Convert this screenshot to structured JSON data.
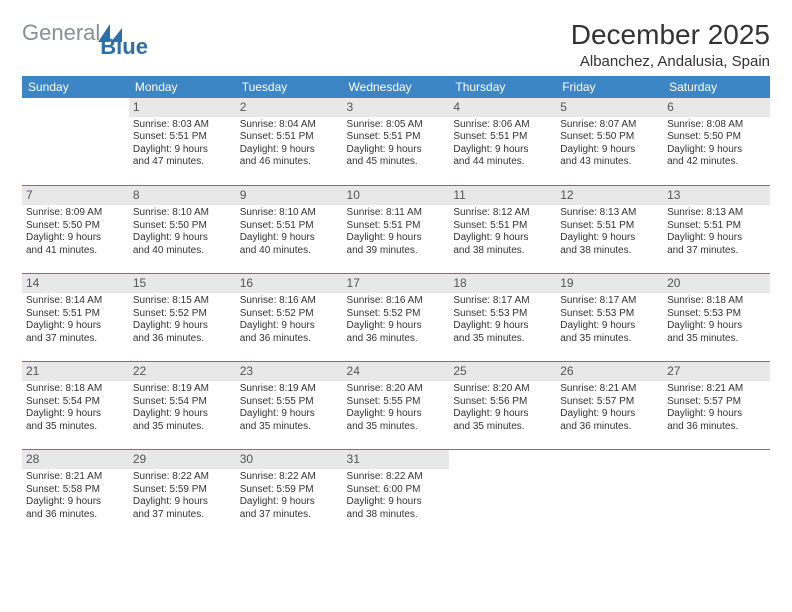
{
  "logo": {
    "word1": "General",
    "word2": "Blue"
  },
  "title": "December 2025",
  "location": "Albanchez, Andalusia, Spain",
  "weekdays": [
    "Sunday",
    "Monday",
    "Tuesday",
    "Wednesday",
    "Thursday",
    "Friday",
    "Saturday"
  ],
  "colors": {
    "header_blue": "#3d86c6",
    "gray_day_bg": "#e8e8e8",
    "logo_gray": "#8a8f93",
    "logo_blue": "#2f6fa8"
  },
  "weeks": [
    [
      {
        "day": "",
        "sunrise": "",
        "sunset": "",
        "daylight1": "",
        "daylight2": "",
        "empty": true
      },
      {
        "day": "1",
        "sunrise": "Sunrise: 8:03 AM",
        "sunset": "Sunset: 5:51 PM",
        "daylight1": "Daylight: 9 hours",
        "daylight2": "and 47 minutes."
      },
      {
        "day": "2",
        "sunrise": "Sunrise: 8:04 AM",
        "sunset": "Sunset: 5:51 PM",
        "daylight1": "Daylight: 9 hours",
        "daylight2": "and 46 minutes."
      },
      {
        "day": "3",
        "sunrise": "Sunrise: 8:05 AM",
        "sunset": "Sunset: 5:51 PM",
        "daylight1": "Daylight: 9 hours",
        "daylight2": "and 45 minutes."
      },
      {
        "day": "4",
        "sunrise": "Sunrise: 8:06 AM",
        "sunset": "Sunset: 5:51 PM",
        "daylight1": "Daylight: 9 hours",
        "daylight2": "and 44 minutes."
      },
      {
        "day": "5",
        "sunrise": "Sunrise: 8:07 AM",
        "sunset": "Sunset: 5:50 PM",
        "daylight1": "Daylight: 9 hours",
        "daylight2": "and 43 minutes."
      },
      {
        "day": "6",
        "sunrise": "Sunrise: 8:08 AM",
        "sunset": "Sunset: 5:50 PM",
        "daylight1": "Daylight: 9 hours",
        "daylight2": "and 42 minutes."
      }
    ],
    [
      {
        "day": "7",
        "sunrise": "Sunrise: 8:09 AM",
        "sunset": "Sunset: 5:50 PM",
        "daylight1": "Daylight: 9 hours",
        "daylight2": "and 41 minutes."
      },
      {
        "day": "8",
        "sunrise": "Sunrise: 8:10 AM",
        "sunset": "Sunset: 5:50 PM",
        "daylight1": "Daylight: 9 hours",
        "daylight2": "and 40 minutes."
      },
      {
        "day": "9",
        "sunrise": "Sunrise: 8:10 AM",
        "sunset": "Sunset: 5:51 PM",
        "daylight1": "Daylight: 9 hours",
        "daylight2": "and 40 minutes."
      },
      {
        "day": "10",
        "sunrise": "Sunrise: 8:11 AM",
        "sunset": "Sunset: 5:51 PM",
        "daylight1": "Daylight: 9 hours",
        "daylight2": "and 39 minutes."
      },
      {
        "day": "11",
        "sunrise": "Sunrise: 8:12 AM",
        "sunset": "Sunset: 5:51 PM",
        "daylight1": "Daylight: 9 hours",
        "daylight2": "and 38 minutes."
      },
      {
        "day": "12",
        "sunrise": "Sunrise: 8:13 AM",
        "sunset": "Sunset: 5:51 PM",
        "daylight1": "Daylight: 9 hours",
        "daylight2": "and 38 minutes."
      },
      {
        "day": "13",
        "sunrise": "Sunrise: 8:13 AM",
        "sunset": "Sunset: 5:51 PM",
        "daylight1": "Daylight: 9 hours",
        "daylight2": "and 37 minutes."
      }
    ],
    [
      {
        "day": "14",
        "sunrise": "Sunrise: 8:14 AM",
        "sunset": "Sunset: 5:51 PM",
        "daylight1": "Daylight: 9 hours",
        "daylight2": "and 37 minutes."
      },
      {
        "day": "15",
        "sunrise": "Sunrise: 8:15 AM",
        "sunset": "Sunset: 5:52 PM",
        "daylight1": "Daylight: 9 hours",
        "daylight2": "and 36 minutes."
      },
      {
        "day": "16",
        "sunrise": "Sunrise: 8:16 AM",
        "sunset": "Sunset: 5:52 PM",
        "daylight1": "Daylight: 9 hours",
        "daylight2": "and 36 minutes."
      },
      {
        "day": "17",
        "sunrise": "Sunrise: 8:16 AM",
        "sunset": "Sunset: 5:52 PM",
        "daylight1": "Daylight: 9 hours",
        "daylight2": "and 36 minutes."
      },
      {
        "day": "18",
        "sunrise": "Sunrise: 8:17 AM",
        "sunset": "Sunset: 5:53 PM",
        "daylight1": "Daylight: 9 hours",
        "daylight2": "and 35 minutes."
      },
      {
        "day": "19",
        "sunrise": "Sunrise: 8:17 AM",
        "sunset": "Sunset: 5:53 PM",
        "daylight1": "Daylight: 9 hours",
        "daylight2": "and 35 minutes."
      },
      {
        "day": "20",
        "sunrise": "Sunrise: 8:18 AM",
        "sunset": "Sunset: 5:53 PM",
        "daylight1": "Daylight: 9 hours",
        "daylight2": "and 35 minutes."
      }
    ],
    [
      {
        "day": "21",
        "sunrise": "Sunrise: 8:18 AM",
        "sunset": "Sunset: 5:54 PM",
        "daylight1": "Daylight: 9 hours",
        "daylight2": "and 35 minutes."
      },
      {
        "day": "22",
        "sunrise": "Sunrise: 8:19 AM",
        "sunset": "Sunset: 5:54 PM",
        "daylight1": "Daylight: 9 hours",
        "daylight2": "and 35 minutes."
      },
      {
        "day": "23",
        "sunrise": "Sunrise: 8:19 AM",
        "sunset": "Sunset: 5:55 PM",
        "daylight1": "Daylight: 9 hours",
        "daylight2": "and 35 minutes."
      },
      {
        "day": "24",
        "sunrise": "Sunrise: 8:20 AM",
        "sunset": "Sunset: 5:55 PM",
        "daylight1": "Daylight: 9 hours",
        "daylight2": "and 35 minutes."
      },
      {
        "day": "25",
        "sunrise": "Sunrise: 8:20 AM",
        "sunset": "Sunset: 5:56 PM",
        "daylight1": "Daylight: 9 hours",
        "daylight2": "and 35 minutes."
      },
      {
        "day": "26",
        "sunrise": "Sunrise: 8:21 AM",
        "sunset": "Sunset: 5:57 PM",
        "daylight1": "Daylight: 9 hours",
        "daylight2": "and 36 minutes."
      },
      {
        "day": "27",
        "sunrise": "Sunrise: 8:21 AM",
        "sunset": "Sunset: 5:57 PM",
        "daylight1": "Daylight: 9 hours",
        "daylight2": "and 36 minutes."
      }
    ],
    [
      {
        "day": "28",
        "sunrise": "Sunrise: 8:21 AM",
        "sunset": "Sunset: 5:58 PM",
        "daylight1": "Daylight: 9 hours",
        "daylight2": "and 36 minutes."
      },
      {
        "day": "29",
        "sunrise": "Sunrise: 8:22 AM",
        "sunset": "Sunset: 5:59 PM",
        "daylight1": "Daylight: 9 hours",
        "daylight2": "and 37 minutes."
      },
      {
        "day": "30",
        "sunrise": "Sunrise: 8:22 AM",
        "sunset": "Sunset: 5:59 PM",
        "daylight1": "Daylight: 9 hours",
        "daylight2": "and 37 minutes."
      },
      {
        "day": "31",
        "sunrise": "Sunrise: 8:22 AM",
        "sunset": "Sunset: 6:00 PM",
        "daylight1": "Daylight: 9 hours",
        "daylight2": "and 38 minutes."
      },
      {
        "day": "",
        "sunrise": "",
        "sunset": "",
        "daylight1": "",
        "daylight2": "",
        "empty": true
      },
      {
        "day": "",
        "sunrise": "",
        "sunset": "",
        "daylight1": "",
        "daylight2": "",
        "empty": true
      },
      {
        "day": "",
        "sunrise": "",
        "sunset": "",
        "daylight1": "",
        "daylight2": "",
        "empty": true
      }
    ]
  ]
}
